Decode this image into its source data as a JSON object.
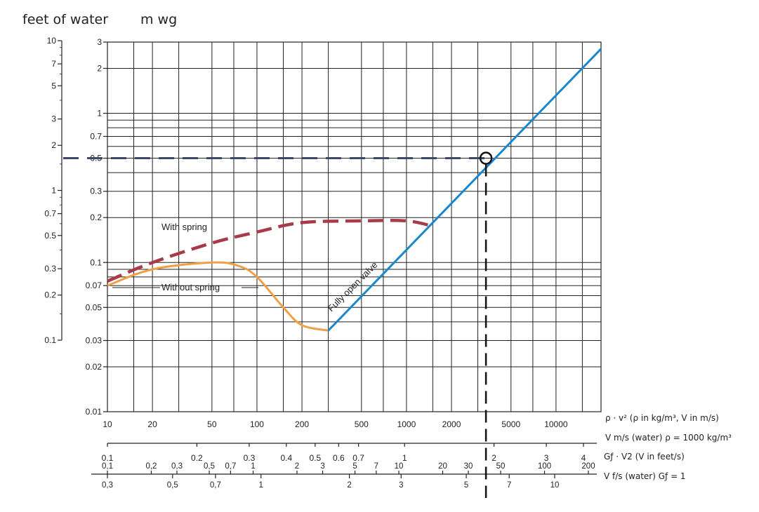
{
  "header": {
    "left_unit": "feet of water",
    "right_unit": "m wg"
  },
  "chart_data": {
    "type": "line",
    "x_scale": "log",
    "xlim": [
      10,
      20000
    ],
    "y_scale": "log",
    "ylim": [
      0.01,
      3
    ],
    "y_axis_mwg": {
      "ticks": [
        0.01,
        0.02,
        0.03,
        0.05,
        0.07,
        0.1,
        0.2,
        0.3,
        0.5,
        0.7,
        1,
        2,
        3
      ],
      "tick_labels": [
        "0.01",
        "0.02",
        "0.03",
        "0.05",
        "0.07",
        "0.1",
        "0.2",
        "0.3",
        "0.5",
        "0.7",
        "1",
        "2",
        "3"
      ]
    },
    "y_axis_feet": {
      "ticks": [
        0.1,
        0.2,
        0.3,
        0.5,
        0.7,
        1,
        2,
        3,
        5,
        7,
        10
      ],
      "tick_labels": [
        "0.1",
        "0.2",
        "0.3",
        "0.5",
        "0.7",
        "1",
        "2",
        "3",
        "5",
        "7",
        "10"
      ]
    },
    "x_axes": [
      {
        "label": "ρ · v² (ρ in kg/m³, V in m/s)",
        "ticks": [
          10,
          20,
          50,
          100,
          200,
          500,
          1000,
          2000,
          5000,
          10000
        ],
        "tick_labels": [
          "10",
          "20",
          "50",
          "100",
          "200",
          "500",
          "1000",
          "2000",
          "5000",
          "10000"
        ]
      },
      {
        "label": "V m/s (water) ρ = 1000 kg/m³",
        "ticks": [
          0.1,
          0.2,
          0.3,
          0.4,
          0.5,
          0.6,
          0.7,
          1,
          2,
          3,
          4
        ],
        "tick_labels": [
          "0.1",
          "0.2",
          "0.3",
          "0.4",
          "0.5",
          "0.6",
          "0.7",
          "1",
          "2",
          "3",
          "4"
        ]
      },
      {
        "label": "Gƒ · V2 (V in feet/s)",
        "ticks": [
          0.1,
          0.2,
          0.3,
          0.5,
          0.7,
          1,
          2,
          3,
          5,
          7,
          10,
          20,
          30,
          50,
          100,
          200
        ],
        "tick_labels": [
          "0,1",
          "0,2",
          "0,3",
          "0,5",
          "0,7",
          "1",
          "2",
          "3",
          "5",
          "7",
          "10",
          "20",
          "30",
          "50",
          "100",
          "200"
        ]
      },
      {
        "label": "V f/s (water) Gƒ = 1",
        "ticks": [
          0.3,
          0.5,
          0.7,
          1,
          2,
          3,
          5,
          7,
          10
        ],
        "tick_labels": [
          "0,3",
          "0,5",
          "0,7",
          "1",
          "2",
          "3",
          "5",
          "7",
          "10"
        ]
      }
    ],
    "series": [
      {
        "name": "With spring",
        "color": "#a83a4a",
        "dash": "dashed",
        "x": [
          10,
          20,
          50,
          100,
          200,
          500,
          1000,
          1500
        ],
        "y": [
          0.075,
          0.1,
          0.135,
          0.16,
          0.185,
          0.19,
          0.19,
          0.175
        ]
      },
      {
        "name": "Without spring",
        "color": "#f0a044",
        "dash": "solid",
        "x": [
          10,
          20,
          50,
          75,
          100,
          150,
          200,
          300
        ],
        "y": [
          0.07,
          0.09,
          0.1,
          0.095,
          0.08,
          0.05,
          0.038,
          0.035
        ]
      },
      {
        "name": "Fully open valve",
        "color": "#1a87cc",
        "dash": "solid",
        "x": [
          300,
          20000
        ],
        "y": [
          0.035,
          2.7
        ]
      }
    ],
    "operating_point": {
      "x": 3400,
      "y": 0.5
    }
  }
}
